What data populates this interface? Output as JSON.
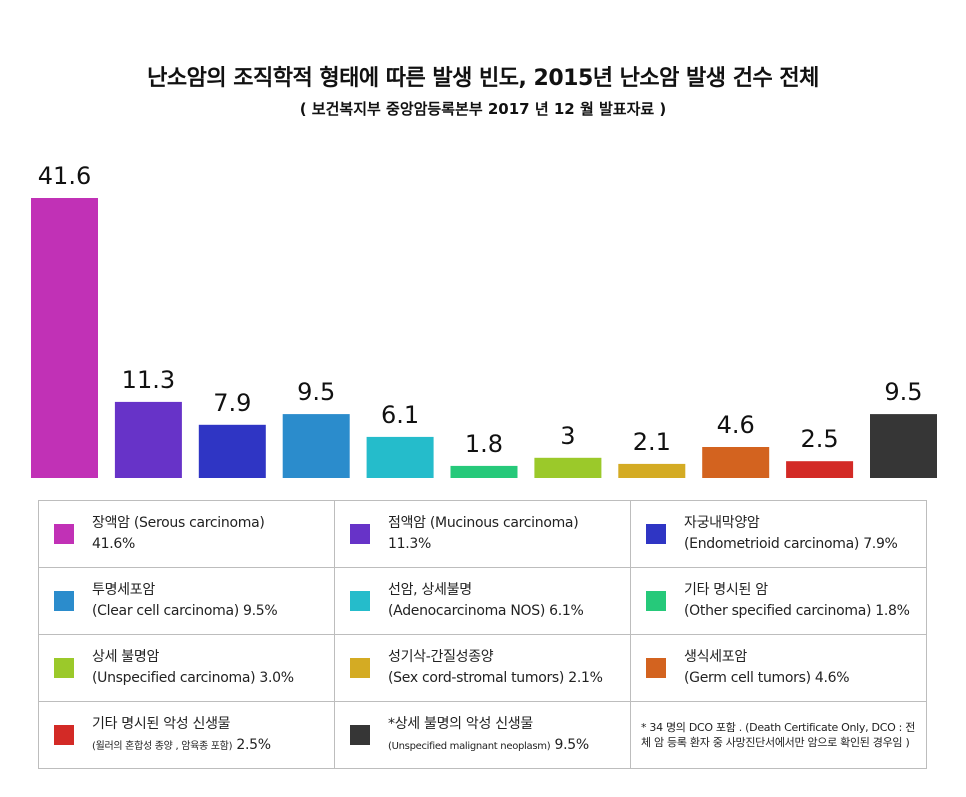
{
  "chart_data": {
    "type": "bar",
    "title": "난소암의 조직학적 형태에 따른 발생 빈도, 2015년 난소암 발생 건수 전체",
    "subtitle": "( 보건복지부 중앙암등록본부 2017  년 12 월 발표자료 )",
    "categories": [
      "장액암",
      "점액암",
      "자궁내막양암",
      "투명세포암",
      "선암, 상세불명",
      "기타 명시된 암",
      "상세 불명암",
      "성기삭-간질성종양",
      "생식세포암",
      "기타 명시된 악성 신생물",
      "*상세 불명의 악성 신생물"
    ],
    "values": [
      41.6,
      11.3,
      7.9,
      9.5,
      6.1,
      1.8,
      3,
      2.1,
      4.6,
      2.5,
      9.5
    ],
    "value_labels": [
      "41.6",
      "11.3",
      "7.9",
      "9.5",
      "6.1",
      "1.8",
      "3",
      "2.1",
      "4.6",
      "2.5",
      "9.5"
    ],
    "colors": [
      "#c131b6",
      "#6733c8",
      "#2f35c4",
      "#2b8ccc",
      "#25bccb",
      "#26c97a",
      "#9bc92a",
      "#d4ab23",
      "#d3631f",
      "#d32a26",
      "#363636"
    ],
    "ylim": [
      0,
      41.6
    ],
    "xlabel": "",
    "ylabel": "",
    "grid": false,
    "legend": "bottom"
  },
  "legend": {
    "items": [
      {
        "line1": "장액암 (Serous carcinoma)",
        "line2": "41.6%",
        "color": "#c131b6"
      },
      {
        "line1": "점액암 (Mucinous carcinoma)",
        "line2": "11.3%",
        "color": "#6733c8"
      },
      {
        "line1": "자궁내막양암",
        "line2": "(Endometrioid carcinoma) 7.9%",
        "color": "#2f35c4"
      },
      {
        "line1": "투명세포암",
        "line2": "(Clear cell carcinoma) 9.5%",
        "color": "#2b8ccc"
      },
      {
        "line1": "선암, 상세불명",
        "line2": "(Adenocarcinoma NOS) 6.1%",
        "color": "#25bccb"
      },
      {
        "line1": "기타 명시된 암",
        "line2": "(Other specified carcinoma) 1.8%",
        "color": "#26c97a"
      },
      {
        "line1": "상세 불명암",
        "line2": "(Unspecified carcinoma) 3.0%",
        "color": "#9bc92a"
      },
      {
        "line1": "성기삭-간질성종양",
        "line2": "(Sex cord-stromal tumors) 2.1%",
        "color": "#d4ab23"
      },
      {
        "line1": "생식세포암",
        "line2": "(Germ cell tumors) 4.6%",
        "color": "#d3631f"
      },
      {
        "line1": "기타 명시된 악성 신생물",
        "line2_small": "(윌러의 혼합성 종양 , 암육종 포함)",
        "line2": " 2.5%",
        "color": "#d32a26"
      },
      {
        "line1": "*상세 불명의 악성 신생물",
        "line2_small": "(Unspecified malignant neoplasm)",
        "line2": " 9.5%",
        "color": "#363636"
      }
    ],
    "note": "* 34 명의 DCO 포함 . (Death Certificate Only, DCO : 전체 암 등록 환자 중 사망진단서에서만 암으로 확인된 경우임 )"
  }
}
